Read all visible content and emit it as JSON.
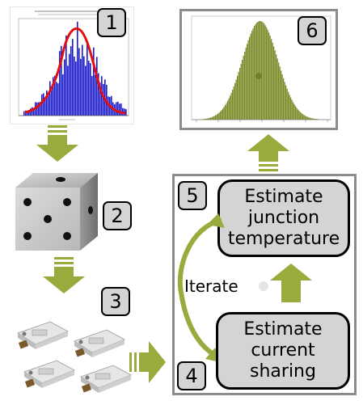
{
  "badges": {
    "b1": "1",
    "b2": "2",
    "b3": "3",
    "b4": "4",
    "b5": "5",
    "b6": "6"
  },
  "steps": {
    "junction": [
      "Estimate",
      "junction",
      "temperature"
    ],
    "current": [
      "Estimate",
      "current",
      "sharing"
    ]
  },
  "iterate_label": "Iterate",
  "colors": {
    "arrow_green": "#9aaa3c",
    "badge_gray": "#d4d4d4",
    "panel_border": "#8c8c8c",
    "hist_olive": "#7d8c2a",
    "hist_blue": "#1a1ad0",
    "fit_red": "#e01010"
  }
}
